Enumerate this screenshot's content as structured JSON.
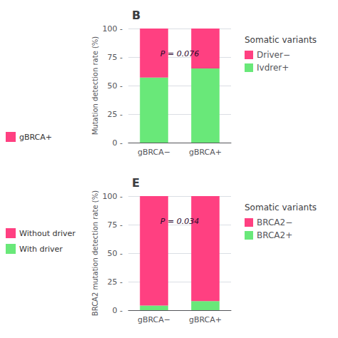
{
  "chart_data": [
    {
      "type": "bar",
      "title": "B",
      "categories": [
        "gBRCA−",
        "gBRCA+"
      ],
      "series": [
        {
          "name": "Ivdrer+",
          "color": "#69E879",
          "values": [
            57,
            65
          ]
        },
        {
          "name": "Driver−",
          "color": "#FF4081",
          "values": [
            43,
            35
          ]
        }
      ],
      "stacked": true,
      "ylabel": "Mutation detection rate (%)",
      "ylim": [
        0,
        100
      ],
      "yticks": [
        {
          "value": 0,
          "label": "0 -"
        },
        {
          "value": 25,
          "label": "25 -"
        },
        {
          "value": 50,
          "label": "50 -"
        },
        {
          "value": 75,
          "label": "75 -"
        },
        {
          "value": 100,
          "label": "100 -"
        }
      ],
      "grid": true,
      "annotations": [
        {
          "text": "P = 0.076",
          "color": "#2d0a2e"
        }
      ],
      "legend_title": "Somatic variants",
      "extra_legend": [
        {
          "name": "gBRCA+",
          "color": "#FF4081"
        }
      ]
    },
    {
      "type": "bar",
      "title": "E",
      "categories": [
        "gBRCA−",
        "gBRCA+"
      ],
      "series": [
        {
          "name": "BRCA2+",
          "color": "#69E879",
          "values": [
            4,
            8
          ]
        },
        {
          "name": "BRCA2−",
          "color": "#FF4081",
          "values": [
            96,
            92
          ]
        }
      ],
      "stacked": true,
      "ylabel": "BRCA2 mutation detection rate (%)",
      "ylim": [
        0,
        100
      ],
      "yticks": [
        {
          "value": 0,
          "label": "0 -"
        },
        {
          "value": 25,
          "label": "25 -"
        },
        {
          "value": 50,
          "label": "50 -"
        },
        {
          "value": 75,
          "label": "75 -"
        },
        {
          "value": 100,
          "label": "100 -"
        }
      ],
      "grid": true,
      "annotations": [
        {
          "text": "P = 0.034",
          "color": "#2d0a2e"
        }
      ],
      "legend_title": "Somatic variants",
      "extra_legend": [
        {
          "name": "Without driver",
          "color": "#FF4081"
        },
        {
          "name": "With driver",
          "color": "#69E879"
        }
      ]
    }
  ]
}
